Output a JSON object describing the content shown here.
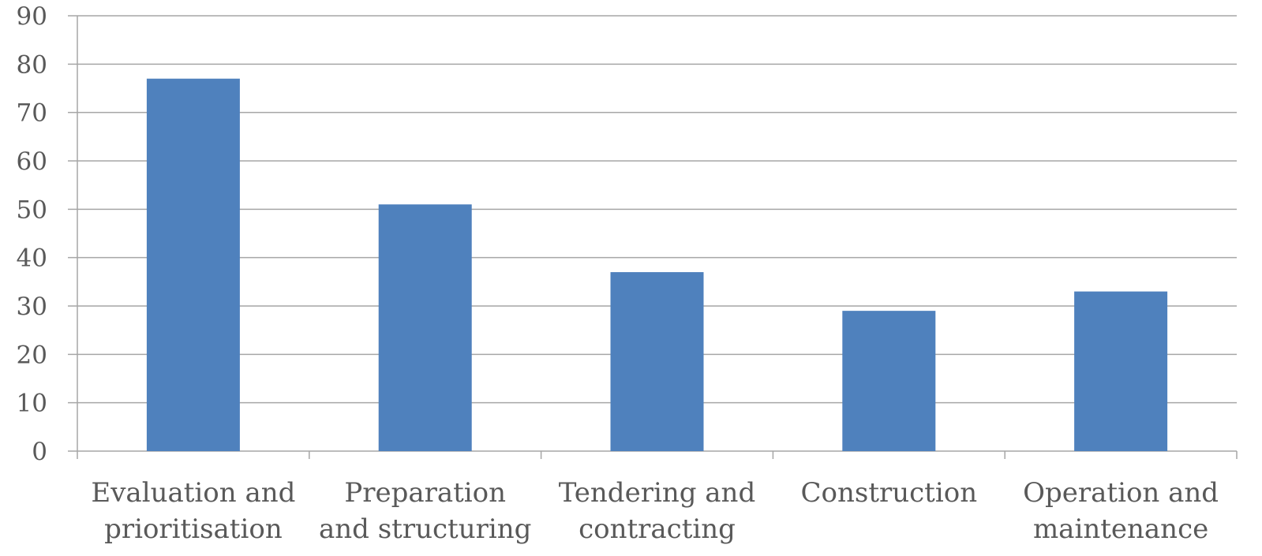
{
  "chart_data": {
    "type": "bar",
    "title": "",
    "xlabel": "",
    "ylabel": "",
    "categories": [
      [
        "Evaluation and",
        "prioritisation"
      ],
      [
        "Preparation",
        "and structuring"
      ],
      [
        "Tendering and",
        "contracting"
      ],
      [
        "Construction"
      ],
      [
        "Operation and",
        "maintenance"
      ]
    ],
    "values": [
      77,
      51,
      37,
      29,
      33
    ],
    "ylim": [
      0,
      90
    ],
    "yticks": [
      "0",
      "10",
      "20",
      "30",
      "40",
      "50",
      "60",
      "70",
      "80",
      "90"
    ],
    "grid": true,
    "legend": "none",
    "colors": {
      "bar": "#4F81BD",
      "grid": "#A6A6A6",
      "axis": "#A6A6A6",
      "text": "#595959"
    }
  }
}
